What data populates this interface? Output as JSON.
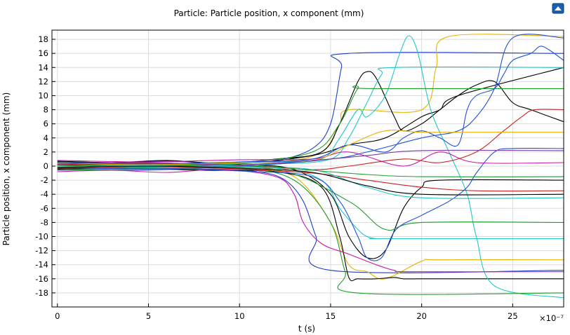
{
  "chart_data": {
    "type": "line",
    "title": "Particle: Particle position, x component (mm)",
    "xlabel": "t (s)",
    "ylabel": "Particle position, x component (mm)",
    "x_multiplier_label": "×10⁻⁷",
    "xlim": [
      -0.3,
      27.8
    ],
    "ylim": [
      -20,
      19.3
    ],
    "xticks": [
      0,
      5,
      10,
      15,
      20,
      25
    ],
    "yticks": [
      18,
      16,
      14,
      12,
      10,
      8,
      6,
      4,
      2,
      0,
      -2,
      -4,
      -6,
      -8,
      -10,
      -12,
      -14,
      -16,
      -18
    ],
    "grid": true,
    "legend": "none",
    "series": [
      {
        "color": "#1f3ec8",
        "x": [
          0,
          3,
          6,
          9,
          12,
          14,
          15,
          15.6,
          16,
          27.8
        ],
        "values": [
          0.6,
          0.5,
          0.7,
          0.4,
          0.8,
          2.5,
          6,
          14,
          16,
          16
        ]
      },
      {
        "color": "#1f3ec8",
        "x": [
          0,
          4,
          8,
          11,
          12.5,
          13.5,
          14.2,
          15,
          27.8
        ],
        "values": [
          -0.5,
          -0.6,
          -0.4,
          -0.8,
          -2,
          -5,
          -10,
          -14.8,
          -14.8
        ]
      },
      {
        "color": "#e6b400",
        "x": [
          0,
          4,
          8,
          12,
          14.5,
          15.5,
          16,
          20,
          20.8,
          21.5,
          27.8
        ],
        "values": [
          0.2,
          0.3,
          0.1,
          0.5,
          2,
          6,
          8,
          8,
          14,
          18.4,
          18.4
        ]
      },
      {
        "color": "#e6b400",
        "x": [
          0,
          5,
          10,
          13,
          15,
          16,
          17,
          18,
          20,
          21,
          27.8
        ],
        "values": [
          -0.3,
          -0.2,
          -0.4,
          -1.5,
          -8,
          -14,
          -15,
          -16,
          -13.5,
          -13.3,
          -13.3
        ]
      },
      {
        "color": "#000000",
        "x": [
          0,
          3,
          6,
          9,
          12,
          14.5,
          15.5,
          16.5,
          17,
          17.5,
          18.5,
          19,
          20,
          21,
          22,
          23,
          24,
          25,
          26,
          27.8
        ],
        "values": [
          0.7,
          0.5,
          0.8,
          0.4,
          1,
          2,
          6,
          12,
          13.4,
          12.5,
          7,
          5,
          6,
          8,
          10,
          11.5,
          12,
          9,
          8,
          6.3
        ]
      },
      {
        "color": "#000000",
        "x": [
          0,
          4,
          8,
          12,
          14.5,
          15.5,
          16,
          16.5,
          17.5,
          18.5,
          19,
          20,
          27.8
        ],
        "values": [
          -0.4,
          -0.3,
          -0.6,
          -0.8,
          -3,
          -10,
          -15.8,
          -16,
          -16,
          -15.8,
          -16,
          -16,
          -16
        ]
      },
      {
        "color": "#000000",
        "x": [
          0,
          5,
          10,
          13,
          15,
          16,
          17,
          18,
          19,
          20,
          21,
          27.8
        ],
        "values": [
          0.1,
          0.3,
          0.2,
          -0.5,
          -4,
          -10,
          -13,
          -12,
          -6,
          -3,
          -2,
          -2
        ]
      },
      {
        "color": "#000000",
        "x": [
          0,
          5,
          10,
          14,
          16,
          18,
          20,
          21,
          22,
          27.8
        ],
        "values": [
          0.2,
          0.1,
          0.3,
          1.5,
          3,
          4,
          7,
          8,
          10,
          14
        ]
      },
      {
        "color": "#20c8c8",
        "x": [
          0,
          4,
          8,
          12,
          14.5,
          15.5,
          16.5,
          17,
          18,
          18.8,
          19.3,
          19.8,
          20.5,
          21.5,
          22.5,
          23,
          24,
          27.8
        ],
        "values": [
          0.3,
          0.4,
          0.2,
          0.6,
          1,
          4,
          8,
          7,
          10,
          16,
          18.5,
          16,
          8,
          2,
          -4,
          -10,
          -17,
          -18.7
        ]
      },
      {
        "color": "#20c8c8",
        "x": [
          0,
          6,
          12,
          14.5,
          15.5,
          16.5,
          17,
          17.5,
          18,
          27.8
        ],
        "values": [
          -0.1,
          0.2,
          -0.3,
          -2,
          -6,
          -9,
          -10,
          -10.3,
          -10.3,
          -10.3
        ]
      },
      {
        "color": "#20c8c8",
        "x": [
          0,
          6,
          12,
          15,
          16,
          17,
          17.8,
          18.5,
          27.8
        ],
        "values": [
          0.1,
          -0.2,
          0.3,
          1,
          4,
          9,
          13,
          14,
          14
        ]
      },
      {
        "color": "#1f9e2d",
        "x": [
          0,
          5,
          10,
          13,
          15,
          15.8,
          16.4,
          27.8
        ],
        "values": [
          -0.2,
          -0.4,
          -0.3,
          -2,
          -8,
          -15,
          -18,
          -18
        ]
      },
      {
        "color": "#1f9e2d",
        "x": [
          0,
          5,
          10,
          14,
          15.5,
          16.5,
          17.2,
          27.8
        ],
        "values": [
          0.4,
          0.2,
          0.5,
          2,
          6,
          11,
          11,
          11
        ]
      },
      {
        "color": "#1f9e2d",
        "x": [
          0,
          6,
          12,
          16,
          18,
          20,
          27.8
        ],
        "values": [
          -0.6,
          -0.4,
          -0.5,
          -5,
          -9,
          -8,
          -8
        ]
      },
      {
        "color": "#c81aa8",
        "x": [
          0,
          3,
          6,
          9,
          12,
          13,
          13.5,
          14.5,
          16,
          17.5,
          18.5,
          19.5,
          27.8
        ],
        "values": [
          -0.8,
          -0.6,
          -0.9,
          -0.5,
          -1.5,
          -4,
          -8,
          -11,
          -12.5,
          -14,
          -14.8,
          -15,
          -15
        ]
      },
      {
        "color": "#c81aa8",
        "x": [
          0,
          5,
          10,
          14,
          16,
          19,
          21,
          23,
          27.8
        ],
        "values": [
          0.8,
          0.6,
          0.9,
          1,
          2,
          0,
          2,
          0.5,
          0.5
        ]
      },
      {
        "color": "#d02020",
        "x": [
          0,
          5,
          10,
          14,
          16,
          19,
          21,
          23,
          24.5,
          25.5,
          26.2,
          27.8
        ],
        "values": [
          0.2,
          0.4,
          0.1,
          -0.5,
          0,
          1,
          0.5,
          2,
          5,
          7,
          8,
          8
        ]
      },
      {
        "color": "#d02020",
        "x": [
          0,
          5,
          10,
          14,
          17,
          20,
          23,
          27.8
        ],
        "values": [
          -0.3,
          -0.1,
          -0.4,
          -1,
          -2,
          -3,
          -3.5,
          -3.5
        ]
      },
      {
        "color": "#2050d8",
        "x": [
          0,
          5,
          10,
          14,
          16,
          18,
          19,
          20,
          21,
          22,
          22.5,
          23,
          24,
          24.5,
          25,
          26,
          26.5,
          27,
          27.8
        ],
        "values": [
          0.5,
          0.3,
          0.6,
          1,
          3,
          2,
          4,
          5,
          4,
          3,
          8,
          10,
          11,
          13,
          15,
          16,
          17,
          16.5,
          15
        ]
      },
      {
        "color": "#2050d8",
        "x": [
          0,
          5,
          10,
          14,
          15.5,
          16.5,
          17,
          17.8,
          18.6,
          20,
          21.5,
          22.5,
          23,
          24,
          25,
          27.8
        ],
        "values": [
          -0.5,
          -0.3,
          -0.7,
          -1.5,
          -5,
          -10,
          -13,
          -13,
          -9,
          -7,
          -5,
          -3,
          -1,
          2,
          2.5,
          2.5
        ]
      },
      {
        "color": "#2050d8",
        "x": [
          0,
          5,
          10,
          15,
          17,
          20,
          22,
          23,
          24,
          25,
          27.8
        ],
        "values": [
          0.1,
          0.2,
          0,
          1,
          2,
          4,
          5,
          7,
          11,
          18.2,
          18.2
        ]
      },
      {
        "color": "#e6b400",
        "x": [
          0,
          5,
          10,
          14,
          16,
          18,
          20,
          23,
          26,
          27.8
        ],
        "values": [
          0.4,
          0.2,
          0.5,
          0.8,
          3,
          5,
          4.8,
          4.8,
          4.8,
          4.8
        ]
      },
      {
        "color": "#20c8c8",
        "x": [
          0,
          5,
          10,
          14,
          17,
          20,
          27.8
        ],
        "values": [
          -0.1,
          0.1,
          -0.2,
          -0.5,
          -3,
          -4.5,
          -4.5
        ]
      },
      {
        "color": "#7a3fa0",
        "x": [
          0,
          5,
          10,
          14,
          17,
          20,
          27.8
        ],
        "values": [
          0.3,
          0.5,
          0.2,
          0.8,
          1.5,
          2.2,
          2.2
        ]
      },
      {
        "color": "#1f9e2d",
        "x": [
          0,
          5,
          10,
          14,
          17,
          20,
          27.8
        ],
        "values": [
          0.1,
          -0.1,
          0.2,
          -0.6,
          -1.2,
          -1.5,
          -1.5
        ]
      },
      {
        "color": "#000000",
        "x": [
          0,
          5,
          10,
          14,
          17,
          20,
          27.8
        ],
        "values": [
          -0.2,
          0,
          -0.3,
          -0.9,
          -2.8,
          -4,
          -4
        ]
      }
    ]
  }
}
